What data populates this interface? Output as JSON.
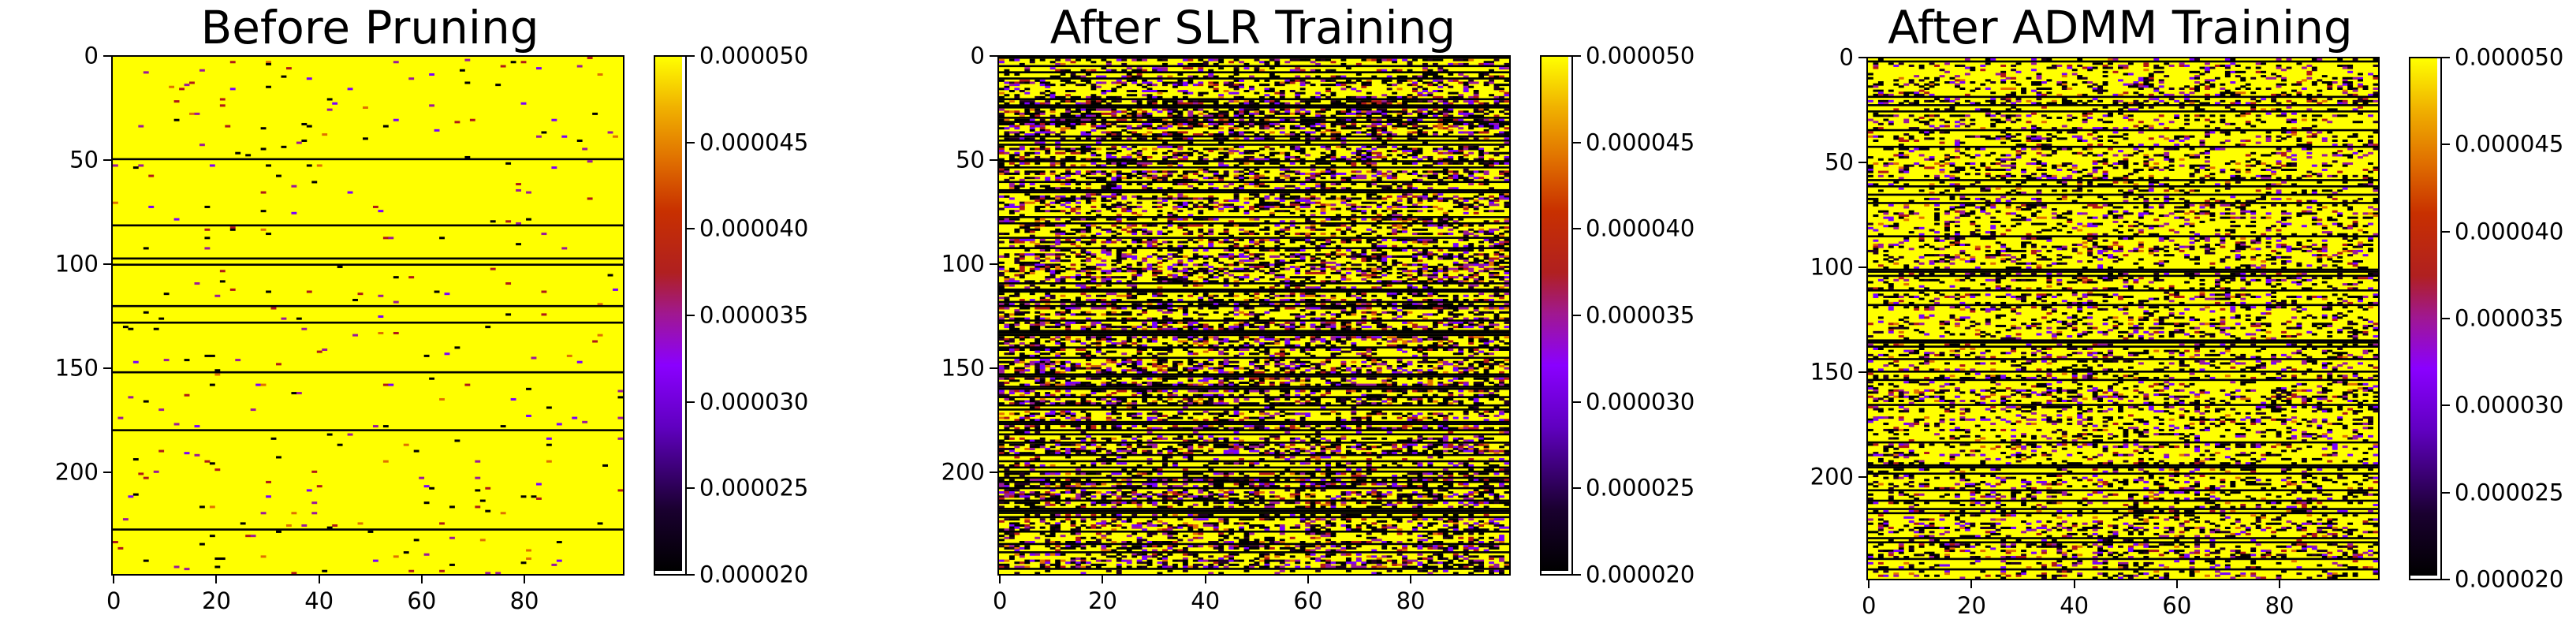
{
  "chart_data": [
    {
      "type": "heatmap",
      "title": "Before Pruning",
      "pattern": "sparse",
      "xlim": [
        0,
        99
      ],
      "ylim": [
        0,
        249
      ],
      "xticks": [
        "0",
        "20",
        "40",
        "60",
        "80"
      ],
      "xtick_values": [
        0,
        20,
        40,
        60,
        80
      ],
      "yticks": [
        "0",
        "50",
        "100",
        "150",
        "200"
      ],
      "ytick_values": [
        0,
        50,
        100,
        150,
        200
      ],
      "colorbar": {
        "colormap": "gnuplot",
        "range": [
          2e-05,
          5e-05
        ],
        "ticks": [
          "0.000020",
          "0.000025",
          "0.000030",
          "0.000035",
          "0.000040",
          "0.000045",
          "0.000050"
        ],
        "tick_values": [
          2e-05,
          2.5e-05,
          3e-05,
          3.5e-05,
          4e-05,
          4.5e-05,
          5e-05
        ]
      }
    },
    {
      "type": "heatmap",
      "title": "After SLR Training",
      "pattern": "dense",
      "xlim": [
        0,
        99
      ],
      "ylim": [
        0,
        249
      ],
      "xticks": [
        "0",
        "20",
        "40",
        "60",
        "80"
      ],
      "xtick_values": [
        0,
        20,
        40,
        60,
        80
      ],
      "yticks": [
        "0",
        "50",
        "100",
        "150",
        "200"
      ],
      "ytick_values": [
        0,
        50,
        100,
        150,
        200
      ],
      "colorbar": {
        "colormap": "gnuplot",
        "range": [
          2e-05,
          5e-05
        ],
        "ticks": [
          "0.000020",
          "0.000025",
          "0.000030",
          "0.000035",
          "0.000040",
          "0.000045",
          "0.000050"
        ],
        "tick_values": [
          2e-05,
          2.5e-05,
          3e-05,
          3.5e-05,
          4e-05,
          4.5e-05,
          5e-05
        ]
      }
    },
    {
      "type": "heatmap",
      "title": "After ADMM Training",
      "pattern": "medium",
      "xlim": [
        0,
        99
      ],
      "ylim": [
        0,
        249
      ],
      "xticks": [
        "0",
        "20",
        "40",
        "60",
        "80"
      ],
      "xtick_values": [
        0,
        20,
        40,
        60,
        80
      ],
      "yticks": [
        "0",
        "50",
        "100",
        "150",
        "200"
      ],
      "ytick_values": [
        0,
        50,
        100,
        150,
        200
      ],
      "colorbar": {
        "colormap": "gnuplot",
        "range": [
          2e-05,
          5e-05
        ],
        "ticks": [
          "0.000020",
          "0.000025",
          "0.000030",
          "0.000035",
          "0.000040",
          "0.000045",
          "0.000050"
        ],
        "tick_values": [
          2e-05,
          2.5e-05,
          3e-05,
          3.5e-05,
          4e-05,
          4.5e-05,
          5e-05
        ]
      }
    }
  ],
  "colors": {
    "high": "#ffff00",
    "orange": "#e07000",
    "red": "#b01818",
    "magenta": "#9a1a9a",
    "violet": "#7a00ff",
    "dark": "#200020",
    "black": "#000000"
  }
}
